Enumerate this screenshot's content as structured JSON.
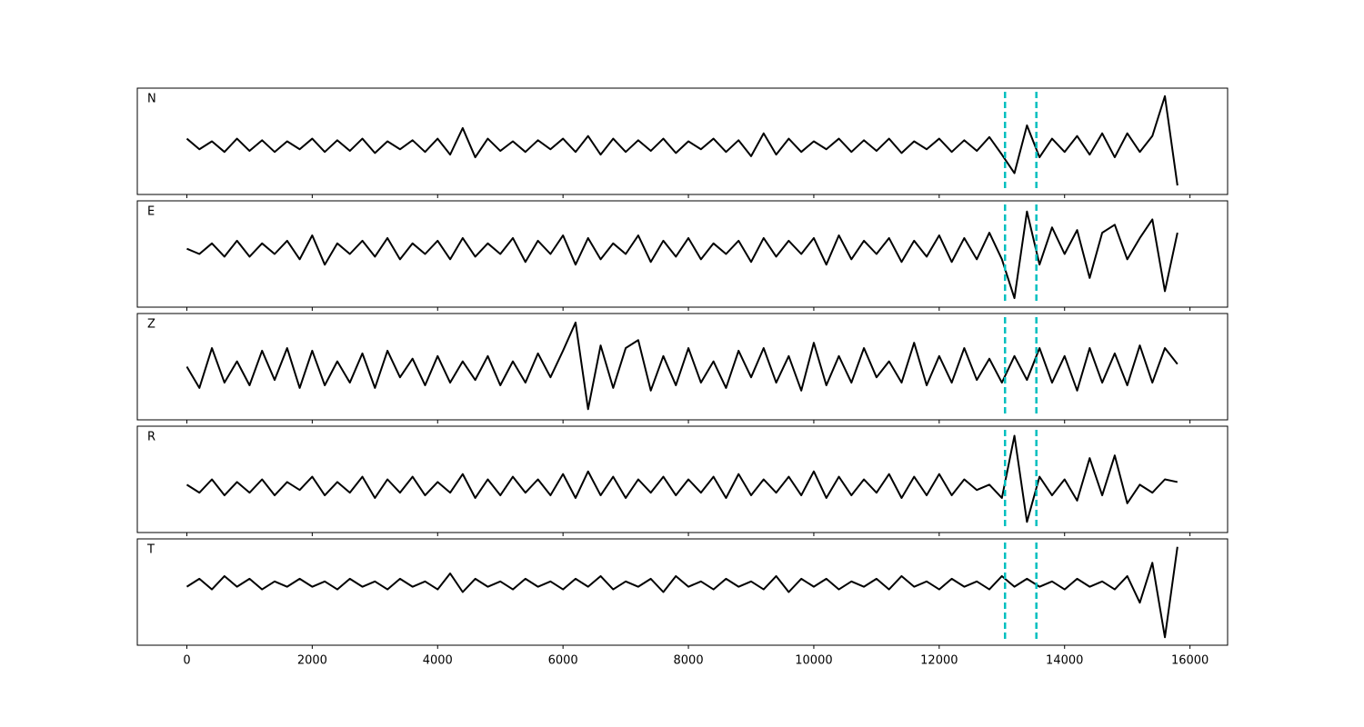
{
  "chart_data": {
    "type": "line",
    "layout": "stacked",
    "x": [
      0,
      200,
      400,
      600,
      800,
      1000,
      1200,
      1400,
      1600,
      1800,
      2000,
      2200,
      2400,
      2600,
      2800,
      3000,
      3200,
      3400,
      3600,
      3800,
      4000,
      4200,
      4400,
      4600,
      4800,
      5000,
      5200,
      5400,
      5600,
      5800,
      6000,
      6200,
      6400,
      6600,
      6800,
      7000,
      7200,
      7400,
      7600,
      7800,
      8000,
      8200,
      8400,
      8600,
      8800,
      9000,
      9200,
      9400,
      9600,
      9800,
      10000,
      10200,
      10400,
      10600,
      10800,
      11000,
      11200,
      11400,
      11600,
      11800,
      12000,
      12200,
      12400,
      12600,
      12800,
      13000,
      13200,
      13400,
      13600,
      13800,
      14000,
      14200,
      14400,
      14600,
      14800,
      15000,
      15200,
      15400,
      15600,
      15800
    ],
    "xlim": [
      -790,
      16600
    ],
    "xticks": [
      0,
      2000,
      4000,
      6000,
      8000,
      10000,
      12000,
      14000,
      16000
    ],
    "ylim": [
      -1,
      1
    ],
    "vlines": [
      13050,
      13550
    ],
    "vline_color": "#00bfbf",
    "series": [
      {
        "name": "N",
        "color": "#000000",
        "values": [
          0.05,
          -0.15,
          0.0,
          -0.2,
          0.05,
          -0.18,
          0.02,
          -0.2,
          0.0,
          -0.15,
          0.05,
          -0.2,
          0.02,
          -0.18,
          0.05,
          -0.22,
          0.0,
          -0.15,
          0.02,
          -0.2,
          0.05,
          -0.25,
          0.25,
          -0.3,
          0.05,
          -0.18,
          0.0,
          -0.2,
          0.02,
          -0.15,
          0.05,
          -0.2,
          0.1,
          -0.25,
          0.05,
          -0.2,
          0.02,
          -0.18,
          0.05,
          -0.22,
          0.0,
          -0.15,
          0.05,
          -0.2,
          0.02,
          -0.28,
          0.15,
          -0.25,
          0.05,
          -0.2,
          0.0,
          -0.15,
          0.05,
          -0.2,
          0.02,
          -0.18,
          0.05,
          -0.22,
          0.0,
          -0.15,
          0.05,
          -0.2,
          0.02,
          -0.18,
          0.08,
          -0.25,
          -0.6,
          0.3,
          -0.3,
          0.05,
          -0.2,
          0.1,
          -0.25,
          0.15,
          -0.3,
          0.15,
          -0.2,
          0.1,
          0.85,
          -0.83
        ]
      },
      {
        "name": "E",
        "color": "#000000",
        "values": [
          0.1,
          0.0,
          0.2,
          -0.05,
          0.25,
          -0.05,
          0.2,
          0.0,
          0.25,
          -0.1,
          0.35,
          -0.2,
          0.2,
          0.0,
          0.25,
          -0.05,
          0.3,
          -0.1,
          0.2,
          0.0,
          0.25,
          -0.1,
          0.3,
          -0.05,
          0.2,
          0.0,
          0.3,
          -0.15,
          0.25,
          0.0,
          0.35,
          -0.2,
          0.3,
          -0.1,
          0.2,
          0.0,
          0.35,
          -0.15,
          0.25,
          -0.05,
          0.3,
          -0.1,
          0.2,
          0.0,
          0.25,
          -0.15,
          0.3,
          -0.05,
          0.25,
          0.0,
          0.3,
          -0.2,
          0.35,
          -0.1,
          0.25,
          0.0,
          0.3,
          -0.15,
          0.25,
          -0.05,
          0.35,
          -0.15,
          0.3,
          -0.1,
          0.4,
          -0.1,
          -0.83,
          0.8,
          -0.2,
          0.5,
          0.0,
          0.45,
          -0.45,
          0.4,
          0.55,
          -0.1,
          0.3,
          0.65,
          -0.7,
          0.4
        ]
      },
      {
        "name": "Z",
        "color": "#000000",
        "values": [
          0.0,
          -0.4,
          0.35,
          -0.3,
          0.1,
          -0.35,
          0.3,
          -0.25,
          0.35,
          -0.4,
          0.3,
          -0.35,
          0.1,
          -0.3,
          0.25,
          -0.4,
          0.3,
          -0.2,
          0.15,
          -0.35,
          0.2,
          -0.3,
          0.1,
          -0.25,
          0.2,
          -0.35,
          0.1,
          -0.3,
          0.25,
          -0.2,
          0.3,
          0.83,
          -0.8,
          0.4,
          -0.4,
          0.35,
          0.5,
          -0.45,
          0.2,
          -0.35,
          0.35,
          -0.3,
          0.1,
          -0.4,
          0.3,
          -0.2,
          0.35,
          -0.3,
          0.2,
          -0.45,
          0.45,
          -0.35,
          0.2,
          -0.3,
          0.35,
          -0.2,
          0.1,
          -0.3,
          0.45,
          -0.35,
          0.2,
          -0.3,
          0.35,
          -0.25,
          0.15,
          -0.3,
          0.2,
          -0.25,
          0.35,
          -0.3,
          0.2,
          -0.45,
          0.35,
          -0.3,
          0.25,
          -0.35,
          0.4,
          -0.3,
          0.35,
          0.05
        ]
      },
      {
        "name": "R",
        "color": "#000000",
        "values": [
          -0.1,
          -0.25,
          0.0,
          -0.3,
          -0.05,
          -0.25,
          0.0,
          -0.3,
          -0.05,
          -0.2,
          0.05,
          -0.3,
          -0.05,
          -0.25,
          0.05,
          -0.35,
          0.0,
          -0.25,
          0.05,
          -0.3,
          -0.05,
          -0.25,
          0.1,
          -0.35,
          0.0,
          -0.3,
          0.05,
          -0.25,
          0.0,
          -0.3,
          0.1,
          -0.35,
          0.15,
          -0.3,
          0.05,
          -0.35,
          0.0,
          -0.25,
          0.05,
          -0.3,
          0.0,
          -0.25,
          0.05,
          -0.35,
          0.1,
          -0.3,
          0.0,
          -0.25,
          0.05,
          -0.3,
          0.15,
          -0.35,
          0.05,
          -0.3,
          0.0,
          -0.25,
          0.1,
          -0.35,
          0.05,
          -0.3,
          0.1,
          -0.3,
          0.0,
          -0.2,
          -0.1,
          -0.35,
          0.82,
          -0.8,
          0.05,
          -0.3,
          0.0,
          -0.4,
          0.4,
          -0.3,
          0.45,
          -0.45,
          -0.1,
          -0.25,
          0.0,
          -0.05
        ]
      },
      {
        "name": "T",
        "color": "#000000",
        "values": [
          0.1,
          0.25,
          0.05,
          0.3,
          0.1,
          0.25,
          0.05,
          0.2,
          0.1,
          0.25,
          0.1,
          0.2,
          0.05,
          0.25,
          0.1,
          0.2,
          0.05,
          0.25,
          0.1,
          0.2,
          0.05,
          0.35,
          0.0,
          0.25,
          0.1,
          0.2,
          0.05,
          0.25,
          0.1,
          0.2,
          0.05,
          0.25,
          0.1,
          0.3,
          0.05,
          0.2,
          0.1,
          0.25,
          0.0,
          0.3,
          0.1,
          0.2,
          0.05,
          0.25,
          0.1,
          0.2,
          0.05,
          0.3,
          0.0,
          0.25,
          0.1,
          0.25,
          0.05,
          0.2,
          0.1,
          0.25,
          0.05,
          0.3,
          0.1,
          0.2,
          0.05,
          0.25,
          0.1,
          0.2,
          0.05,
          0.3,
          0.1,
          0.25,
          0.1,
          0.2,
          0.05,
          0.25,
          0.1,
          0.2,
          0.05,
          0.3,
          -0.2,
          0.55,
          -0.85,
          0.85
        ]
      }
    ]
  }
}
